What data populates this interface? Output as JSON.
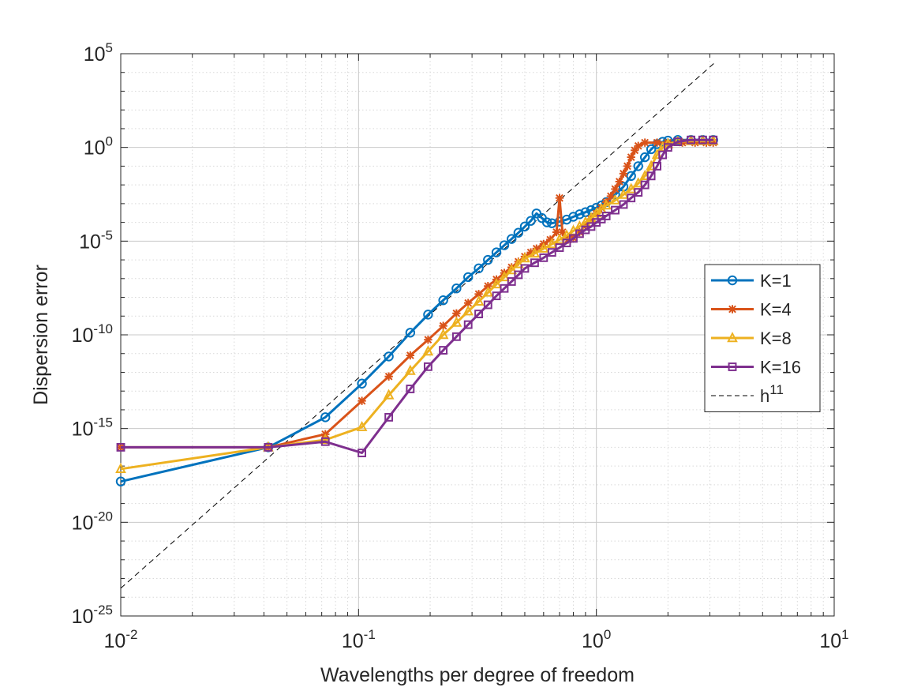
{
  "chart_data": {
    "type": "line",
    "title": "",
    "xlabel": "Wavelengths per degree of freedom",
    "ylabel": "Dispersion error",
    "xscale": "log",
    "yscale": "log",
    "xlim": [
      0.01,
      10
    ],
    "ylim": [
      1e-25,
      100000
    ],
    "grid": true,
    "minor_grid": true,
    "legend_position": "right",
    "x_ticks": [
      {
        "value": 0.01,
        "base": "10",
        "exp": "-2"
      },
      {
        "value": 0.1,
        "base": "10",
        "exp": "-1"
      },
      {
        "value": 1,
        "base": "10",
        "exp": "0"
      },
      {
        "value": 10,
        "base": "10",
        "exp": "1"
      }
    ],
    "y_ticks": [
      {
        "value": 1e-25,
        "base": "10",
        "exp": "-25"
      },
      {
        "value": 1e-20,
        "base": "10",
        "exp": "-20"
      },
      {
        "value": 1e-15,
        "base": "10",
        "exp": "-15"
      },
      {
        "value": 1e-10,
        "base": "10",
        "exp": "-10"
      },
      {
        "value": 1e-05,
        "base": "10",
        "exp": "-5"
      },
      {
        "value": 1,
        "base": "10",
        "exp": "0"
      },
      {
        "value": 100000,
        "base": "10",
        "exp": "5"
      }
    ],
    "series": [
      {
        "name": "K=1",
        "color": "#0072BD",
        "marker": "circle",
        "points": [
          [
            0.01,
            1.5e-18
          ],
          [
            0.0417,
            1e-16
          ],
          [
            0.0725,
            4e-15
          ],
          [
            0.1033,
            2.5e-13
          ],
          [
            0.134,
            7e-12
          ],
          [
            0.165,
            1.3e-10
          ],
          [
            0.196,
            1.2e-09
          ],
          [
            0.227,
            7e-09
          ],
          [
            0.258,
            3e-08
          ],
          [
            0.289,
            1.2e-07
          ],
          [
            0.32,
            3.5e-07
          ],
          [
            0.35,
            1e-06
          ],
          [
            0.38,
            2.5e-06
          ],
          [
            0.41,
            6e-06
          ],
          [
            0.44,
            1.3e-05
          ],
          [
            0.47,
            2.8e-05
          ],
          [
            0.5,
            6e-05
          ],
          [
            0.53,
            0.00012
          ],
          [
            0.56,
            0.0003
          ],
          [
            0.59,
            0.00017
          ],
          [
            0.62,
            0.0001
          ],
          [
            0.65,
            9e-05
          ],
          [
            0.7,
            0.00011
          ],
          [
            0.75,
            0.00014
          ],
          [
            0.8,
            0.0002
          ],
          [
            0.85,
            0.00027
          ],
          [
            0.9,
            0.00035
          ],
          [
            0.95,
            0.00045
          ],
          [
            1.0,
            0.0006
          ],
          [
            1.05,
            0.0008
          ],
          [
            1.1,
            0.0012
          ],
          [
            1.2,
            0.003
          ],
          [
            1.3,
            0.008
          ],
          [
            1.4,
            0.03
          ],
          [
            1.5,
            0.1
          ],
          [
            1.6,
            0.3
          ],
          [
            1.7,
            0.8
          ],
          [
            1.8,
            1.5
          ],
          [
            1.9,
            2.0
          ],
          [
            2.0,
            2.3
          ],
          [
            2.2,
            2.5
          ],
          [
            2.5,
            2.5
          ],
          [
            2.8,
            2.5
          ],
          [
            3.1,
            2.5
          ]
        ]
      },
      {
        "name": "K=4",
        "color": "#D95319",
        "marker": "star",
        "points": [
          [
            0.01,
            1e-16
          ],
          [
            0.0417,
            1e-16
          ],
          [
            0.0725,
            5e-16
          ],
          [
            0.1033,
            3e-14
          ],
          [
            0.134,
            6e-13
          ],
          [
            0.165,
            8e-12
          ],
          [
            0.196,
            5.5e-11
          ],
          [
            0.227,
            3e-10
          ],
          [
            0.258,
            1.4e-09
          ],
          [
            0.289,
            5e-09
          ],
          [
            0.32,
            1.5e-08
          ],
          [
            0.35,
            4e-08
          ],
          [
            0.38,
            9e-08
          ],
          [
            0.41,
            2e-07
          ],
          [
            0.44,
            4e-07
          ],
          [
            0.47,
            8e-07
          ],
          [
            0.5,
            1.5e-06
          ],
          [
            0.53,
            2.5e-06
          ],
          [
            0.56,
            4e-06
          ],
          [
            0.6,
            7e-06
          ],
          [
            0.64,
            1.2e-05
          ],
          [
            0.68,
            3e-05
          ],
          [
            0.7,
            0.002
          ],
          [
            0.72,
            3e-05
          ],
          [
            0.76,
            1.2e-05
          ],
          [
            0.8,
            1.5e-05
          ],
          [
            0.85,
            3e-05
          ],
          [
            0.9,
            7e-05
          ],
          [
            0.95,
            0.00015
          ],
          [
            1.0,
            0.0003
          ],
          [
            1.05,
            0.0006
          ],
          [
            1.1,
            0.0012
          ],
          [
            1.15,
            0.0025
          ],
          [
            1.2,
            0.006
          ],
          [
            1.25,
            0.015
          ],
          [
            1.3,
            0.04
          ],
          [
            1.35,
            0.1
          ],
          [
            1.4,
            0.3
          ],
          [
            1.45,
            0.7
          ],
          [
            1.5,
            1.2
          ],
          [
            1.6,
            1.8
          ],
          [
            1.8,
            1.8
          ],
          [
            2.0,
            1.8
          ],
          [
            2.3,
            1.8
          ],
          [
            2.6,
            1.8
          ],
          [
            2.9,
            1.8
          ],
          [
            3.1,
            1.8
          ]
        ]
      },
      {
        "name": "K=8",
        "color": "#EDB120",
        "marker": "triangle",
        "points": [
          [
            0.01,
            7e-18
          ],
          [
            0.0417,
            1e-16
          ],
          [
            0.0725,
            2.5e-16
          ],
          [
            0.1033,
            1.2e-15
          ],
          [
            0.134,
            6e-14
          ],
          [
            0.165,
            1.2e-12
          ],
          [
            0.196,
            1.3e-11
          ],
          [
            0.227,
            1e-10
          ],
          [
            0.258,
            4.5e-10
          ],
          [
            0.289,
            1.8e-09
          ],
          [
            0.32,
            6e-09
          ],
          [
            0.35,
            1.8e-08
          ],
          [
            0.38,
            5e-08
          ],
          [
            0.41,
            1.2e-07
          ],
          [
            0.44,
            2.8e-07
          ],
          [
            0.47,
            6e-07
          ],
          [
            0.5,
            1.2e-06
          ],
          [
            0.55,
            2.2e-06
          ],
          [
            0.6,
            4e-06
          ],
          [
            0.65,
            7e-06
          ],
          [
            0.7,
            1.2e-05
          ],
          [
            0.75,
            2e-05
          ],
          [
            0.8,
            3.5e-05
          ],
          [
            0.85,
            6e-05
          ],
          [
            0.9,
            0.0001
          ],
          [
            0.95,
            0.00017
          ],
          [
            1.0,
            0.0003
          ],
          [
            1.05,
            0.0005
          ],
          [
            1.1,
            0.0008
          ],
          [
            1.2,
            0.0015
          ],
          [
            1.3,
            0.003
          ],
          [
            1.4,
            0.006
          ],
          [
            1.5,
            0.012
          ],
          [
            1.6,
            0.03
          ],
          [
            1.7,
            0.1
          ],
          [
            1.8,
            0.4
          ],
          [
            1.9,
            1.0
          ],
          [
            2.0,
            1.5
          ],
          [
            2.2,
            2.0
          ],
          [
            2.5,
            2.2
          ],
          [
            2.8,
            2.2
          ],
          [
            3.1,
            2.2
          ]
        ]
      },
      {
        "name": "K=16",
        "color": "#7E2F8E",
        "marker": "square",
        "points": [
          [
            0.01,
            1e-16
          ],
          [
            0.0417,
            1e-16
          ],
          [
            0.0725,
            2e-16
          ],
          [
            0.1033,
            5e-17
          ],
          [
            0.134,
            4e-15
          ],
          [
            0.165,
            1.3e-13
          ],
          [
            0.196,
            2e-12
          ],
          [
            0.227,
            1.5e-11
          ],
          [
            0.258,
            8e-11
          ],
          [
            0.289,
            3.5e-10
          ],
          [
            0.32,
            1.3e-09
          ],
          [
            0.35,
            4e-09
          ],
          [
            0.38,
            1.2e-08
          ],
          [
            0.41,
            3e-08
          ],
          [
            0.44,
            7e-08
          ],
          [
            0.47,
            1.6e-07
          ],
          [
            0.5,
            3.5e-07
          ],
          [
            0.55,
            7e-07
          ],
          [
            0.6,
            1.3e-06
          ],
          [
            0.65,
            2.5e-06
          ],
          [
            0.7,
            4.5e-06
          ],
          [
            0.75,
            8e-06
          ],
          [
            0.8,
            1.4e-05
          ],
          [
            0.85,
            2.5e-05
          ],
          [
            0.9,
            4e-05
          ],
          [
            0.95,
            6e-05
          ],
          [
            1.0,
            0.0001
          ],
          [
            1.05,
            0.00015
          ],
          [
            1.1,
            0.00022
          ],
          [
            1.2,
            0.00045
          ],
          [
            1.3,
            0.0009
          ],
          [
            1.4,
            0.002
          ],
          [
            1.5,
            0.004
          ],
          [
            1.6,
            0.01
          ],
          [
            1.7,
            0.03
          ],
          [
            1.8,
            0.1
          ],
          [
            1.9,
            0.4
          ],
          [
            2.0,
            1.0
          ],
          [
            2.2,
            2.0
          ],
          [
            2.5,
            2.5
          ],
          [
            2.8,
            2.5
          ],
          [
            3.1,
            2.5
          ]
        ]
      }
    ],
    "reference_line": {
      "label_base": "h",
      "label_exp": "11",
      "color": "#000000",
      "style": "dashed",
      "points": [
        [
          0.01,
          3e-24
        ],
        [
          3.2,
          40000
        ]
      ]
    }
  }
}
